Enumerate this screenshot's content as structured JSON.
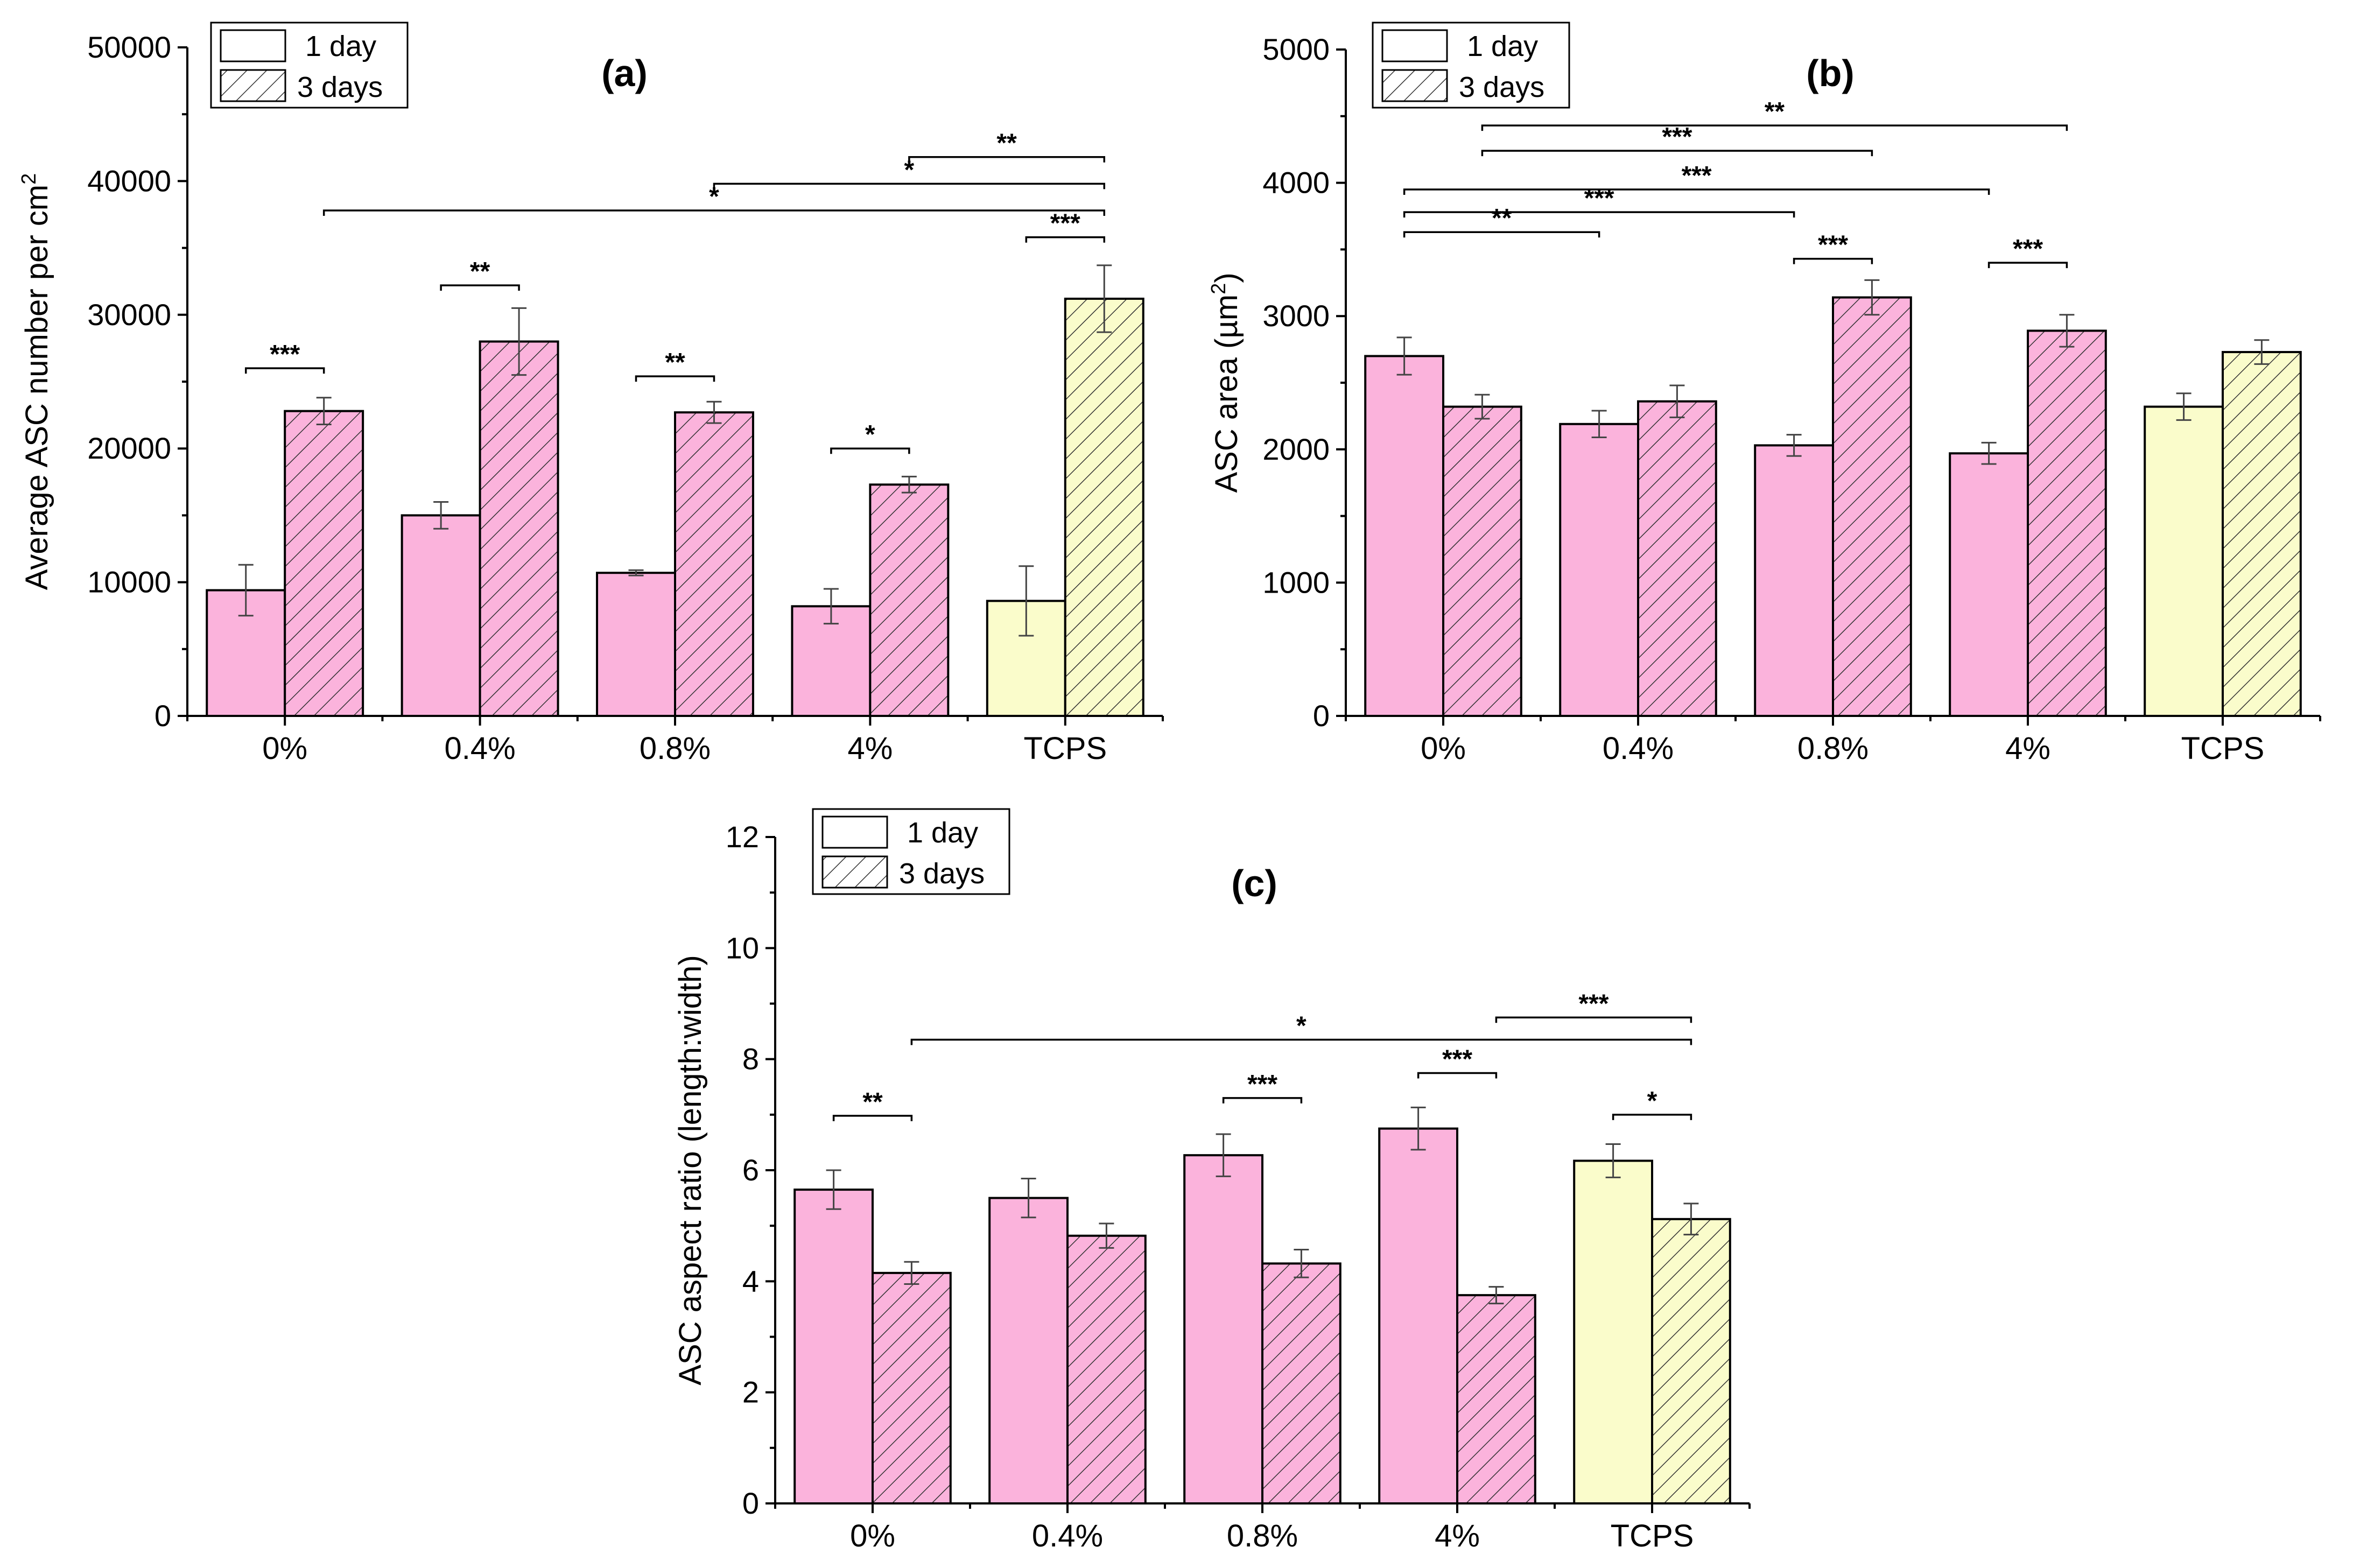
{
  "colors": {
    "pink_fill": "#fbb3dc",
    "yellow_fill": "#fafccb",
    "hatch_stroke": "#333333",
    "axis": "#000000"
  },
  "legend": {
    "day1": "1 day",
    "day3": "3 days"
  },
  "chart_data": [
    {
      "type": "bar",
      "title": "(a)",
      "xlabel": "",
      "ylabel": "Average ASC number per cm",
      "ylabel_sup": "2",
      "ylim": [
        0,
        50000
      ],
      "yticks": [
        0,
        10000,
        20000,
        30000,
        40000,
        50000
      ],
      "categories": [
        "0%",
        "0.4%",
        "0.8%",
        "4%",
        "TCPS"
      ],
      "series": [
        {
          "name": "1 day",
          "values": [
            9400,
            15000,
            10700,
            8200,
            8600
          ],
          "errors": [
            1900,
            1000,
            200,
            1300,
            2600
          ]
        },
        {
          "name": "3 days",
          "values": [
            22800,
            28000,
            22700,
            17300,
            31200
          ],
          "errors": [
            1000,
            2500,
            800,
            600,
            2500
          ]
        }
      ],
      "significance": [
        {
          "from": [
            0,
            0
          ],
          "to": [
            0,
            1
          ],
          "level": 26000,
          "label": "***"
        },
        {
          "from": [
            1,
            0
          ],
          "to": [
            1,
            1
          ],
          "level": 32200,
          "label": "**"
        },
        {
          "from": [
            2,
            0
          ],
          "to": [
            2,
            1
          ],
          "level": 25400,
          "label": "**"
        },
        {
          "from": [
            3,
            0
          ],
          "to": [
            3,
            1
          ],
          "level": 20000,
          "label": "*"
        },
        {
          "from": [
            4,
            0
          ],
          "to": [
            4,
            1
          ],
          "level": 35800,
          "label": "***"
        },
        {
          "from": [
            0,
            1
          ],
          "to": [
            4,
            1
          ],
          "level": 37800,
          "label": "*"
        },
        {
          "from": [
            2,
            1
          ],
          "to": [
            4,
            1
          ],
          "level": 39800,
          "label": "*"
        },
        {
          "from": [
            3,
            1
          ],
          "to": [
            4,
            1
          ],
          "level": 41800,
          "label": "**"
        }
      ]
    },
    {
      "type": "bar",
      "title": "(b)",
      "xlabel": "",
      "ylabel": "ASC area (µm",
      "ylabel_sup": "2",
      "ylabel_tail": ")",
      "ylim": [
        0,
        5000
      ],
      "yticks": [
        0,
        1000,
        2000,
        3000,
        4000,
        5000
      ],
      "categories": [
        "0%",
        "0.4%",
        "0.8%",
        "4%",
        "TCPS"
      ],
      "series": [
        {
          "name": "1 day",
          "values": [
            2700,
            2190,
            2030,
            1970,
            2320
          ],
          "errors": [
            140,
            100,
            80,
            80,
            100
          ]
        },
        {
          "name": "3 days",
          "values": [
            2320,
            2360,
            3140,
            2890,
            2730
          ],
          "errors": [
            90,
            120,
            130,
            120,
            90
          ]
        }
      ],
      "significance": [
        {
          "from": [
            2,
            0
          ],
          "to": [
            2,
            1
          ],
          "level": 3430,
          "label": "***"
        },
        {
          "from": [
            3,
            0
          ],
          "to": [
            3,
            1
          ],
          "level": 3400,
          "label": "***"
        },
        {
          "from": [
            0,
            0
          ],
          "to": [
            1,
            0
          ],
          "level": 3630,
          "label": "**"
        },
        {
          "from": [
            0,
            0
          ],
          "to": [
            2,
            0
          ],
          "level": 3780,
          "label": "***"
        },
        {
          "from": [
            0,
            0
          ],
          "to": [
            3,
            0
          ],
          "level": 3950,
          "label": "***"
        },
        {
          "from": [
            0,
            1
          ],
          "to": [
            2,
            1
          ],
          "level": 4240,
          "label": "***"
        },
        {
          "from": [
            0,
            1
          ],
          "to": [
            3,
            1
          ],
          "level": 4430,
          "label": "**"
        }
      ]
    },
    {
      "type": "bar",
      "title": "(c)",
      "xlabel": "",
      "ylabel": "ASC aspect ratio (length:width)",
      "ylim": [
        0,
        12
      ],
      "yticks": [
        0,
        2,
        4,
        6,
        8,
        10,
        12
      ],
      "categories": [
        "0%",
        "0.4%",
        "0.8%",
        "4%",
        "TCPS"
      ],
      "series": [
        {
          "name": "1 day",
          "values": [
            5.65,
            5.5,
            6.27,
            6.75,
            6.17
          ],
          "errors": [
            0.35,
            0.35,
            0.38,
            0.38,
            0.3
          ]
        },
        {
          "name": "3 days",
          "values": [
            4.15,
            4.82,
            4.32,
            3.75,
            5.12
          ],
          "errors": [
            0.2,
            0.22,
            0.25,
            0.15,
            0.28
          ]
        }
      ],
      "significance": [
        {
          "from": [
            0,
            0
          ],
          "to": [
            0,
            1
          ],
          "level": 6.98,
          "label": "**"
        },
        {
          "from": [
            2,
            0
          ],
          "to": [
            2,
            1
          ],
          "level": 7.3,
          "label": "***"
        },
        {
          "from": [
            3,
            0
          ],
          "to": [
            3,
            1
          ],
          "level": 7.75,
          "label": "***"
        },
        {
          "from": [
            4,
            0
          ],
          "to": [
            4,
            1
          ],
          "level": 7.0,
          "label": "*"
        },
        {
          "from": [
            0,
            1
          ],
          "to": [
            4,
            1
          ],
          "level": 8.35,
          "label": "*"
        },
        {
          "from": [
            3,
            1
          ],
          "to": [
            4,
            1
          ],
          "level": 8.75,
          "label": "***"
        }
      ]
    }
  ]
}
